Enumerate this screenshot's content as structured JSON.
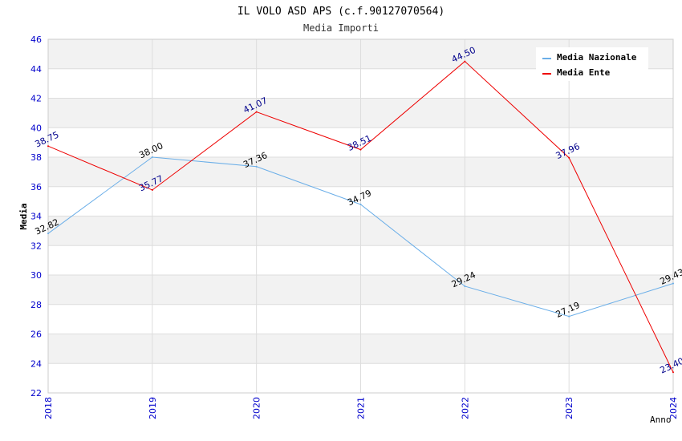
{
  "chart_data": {
    "type": "line",
    "title": "IL VOLO ASD APS (c.f.90127070564)",
    "subtitle": "Media Importi",
    "xlabel": "Anno",
    "ylabel": "Media",
    "x": [
      "2018",
      "2019",
      "2020",
      "2021",
      "2022",
      "2023",
      "2024"
    ],
    "ylim": [
      22,
      46
    ],
    "y_ticks": [
      "22",
      "24",
      "26",
      "28",
      "30",
      "32",
      "34",
      "36",
      "38",
      "40",
      "42",
      "44",
      "46"
    ],
    "grid": true,
    "legend_position": "top-right",
    "series": [
      {
        "name": "Media Nazionale",
        "color": "#6aaee8",
        "label_color": "#000000",
        "values": [
          32.82,
          38.0,
          37.36,
          34.79,
          29.24,
          27.19,
          29.43
        ],
        "labels": [
          "32.82",
          "38.00",
          "37.36",
          "34.79",
          "29.24",
          "27.19",
          "29.43"
        ]
      },
      {
        "name": "Media Ente",
        "color": "#ee0000",
        "label_color": "#00008b",
        "values": [
          38.75,
          35.77,
          41.07,
          38.51,
          44.5,
          37.96,
          23.4
        ],
        "labels": [
          "38.75",
          "35.77",
          "41.07",
          "38.51",
          "44.50",
          "37.96",
          "23.40"
        ]
      }
    ]
  }
}
